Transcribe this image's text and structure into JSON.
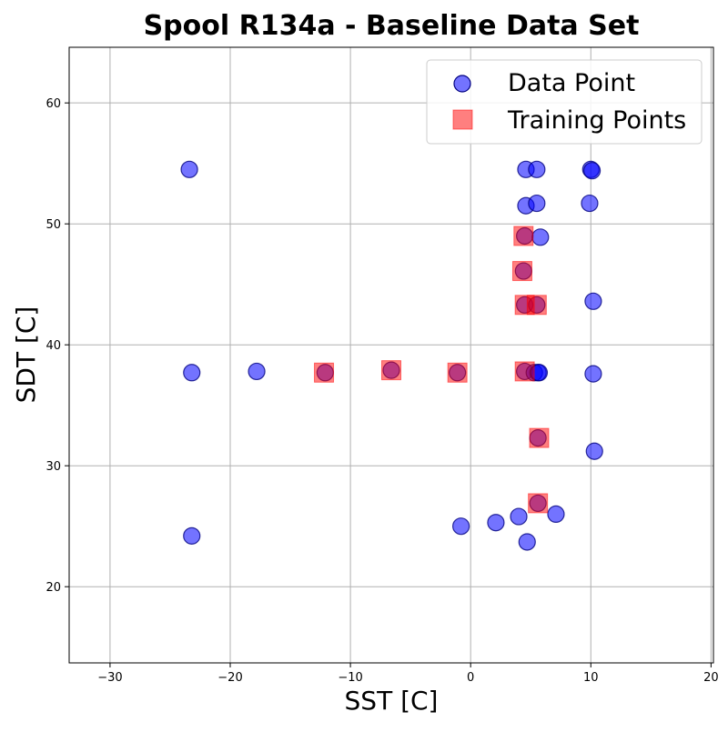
{
  "chart_data": {
    "type": "scatter",
    "title": "Spool R134a - Baseline Data Set",
    "xlabel": "SST [C]",
    "ylabel": "SDT [C]",
    "xlim": [
      -33.4,
      20.2
    ],
    "ylim": [
      13.7,
      64.6
    ],
    "xticks": [
      -30,
      -20,
      -10,
      0,
      10,
      20
    ],
    "yticks": [
      20,
      30,
      40,
      50,
      60
    ],
    "xtick_labels": [
      "−30",
      "−20",
      "−10",
      "0",
      "10",
      "20"
    ],
    "ytick_labels": [
      "20",
      "30",
      "40",
      "50",
      "60"
    ],
    "grid": true,
    "legend_position": "top-right",
    "series": [
      {
        "name": "Data Point",
        "marker": "circle",
        "color": "#0000ff",
        "edge_color": "#000080",
        "opacity": 0.55,
        "x": [
          -23.4,
          4.6,
          5.5,
          10.0,
          10.1,
          4.6,
          5.5,
          9.9,
          4.5,
          5.8,
          4.4,
          4.5,
          5.5,
          10.2,
          -23.2,
          -17.8,
          -12.1,
          -6.6,
          -1.1,
          4.5,
          5.3,
          5.6,
          5.7,
          10.2,
          5.6,
          10.3,
          5.6,
          -0.8,
          2.1,
          4.0,
          4.7,
          7.1,
          -23.2
        ],
        "y": [
          54.5,
          54.5,
          54.5,
          54.5,
          54.4,
          51.5,
          51.7,
          51.7,
          49.0,
          48.9,
          46.1,
          43.3,
          43.3,
          43.6,
          37.7,
          37.8,
          37.7,
          37.9,
          37.7,
          37.8,
          37.7,
          37.7,
          37.7,
          37.6,
          32.3,
          31.2,
          26.9,
          25.0,
          25.3,
          25.8,
          23.7,
          26.0,
          24.2
        ]
      },
      {
        "name": "Training Points",
        "marker": "square",
        "color": "#ff0000",
        "opacity": 0.5,
        "x": [
          4.4,
          4.3,
          4.5,
          5.5,
          -12.2,
          -6.6,
          -1.1,
          4.5,
          5.7,
          5.6
        ],
        "y": [
          49.0,
          46.1,
          43.3,
          43.3,
          37.7,
          37.9,
          37.7,
          37.8,
          32.3,
          26.9
        ]
      }
    ]
  }
}
